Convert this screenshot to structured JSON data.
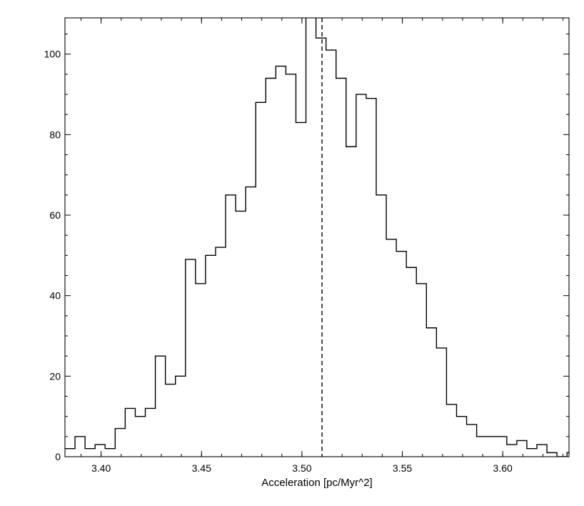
{
  "chart_data": {
    "type": "histogram",
    "title": "",
    "xlabel": "Acceleration [pc/Myr^2]",
    "ylabel": "",
    "xlim": [
      3.382,
      3.633
    ],
    "ylim": [
      0,
      109
    ],
    "grid": false,
    "legend": "none",
    "line_color": "#000000",
    "x_ticks": [
      {
        "value": 3.4,
        "label": "3.40"
      },
      {
        "value": 3.45,
        "label": "3.45"
      },
      {
        "value": 3.5,
        "label": "3.50"
      },
      {
        "value": 3.55,
        "label": "3.55"
      },
      {
        "value": 3.6,
        "label": "3.60"
      }
    ],
    "y_ticks": [
      {
        "value": 0,
        "label": "0"
      },
      {
        "value": 20,
        "label": "20"
      },
      {
        "value": 40,
        "label": "40"
      },
      {
        "value": 60,
        "label": "60"
      },
      {
        "value": 80,
        "label": "80"
      },
      {
        "value": 100,
        "label": "100"
      }
    ],
    "bin_start": 3.382,
    "bin_width": 0.005,
    "counts": [
      2,
      5,
      2,
      3,
      2,
      7,
      12,
      10,
      12,
      25,
      18,
      20,
      49,
      43,
      50,
      52,
      65,
      61,
      67,
      88,
      94,
      97,
      95,
      83,
      112,
      104,
      101,
      94,
      77,
      90,
      89,
      65,
      54,
      51,
      47,
      43,
      32,
      27,
      13,
      10,
      8,
      5,
      5,
      5,
      3,
      4,
      2,
      3,
      1,
      0,
      1
    ],
    "reference_line": {
      "x": 3.51,
      "style": "dashed"
    }
  }
}
